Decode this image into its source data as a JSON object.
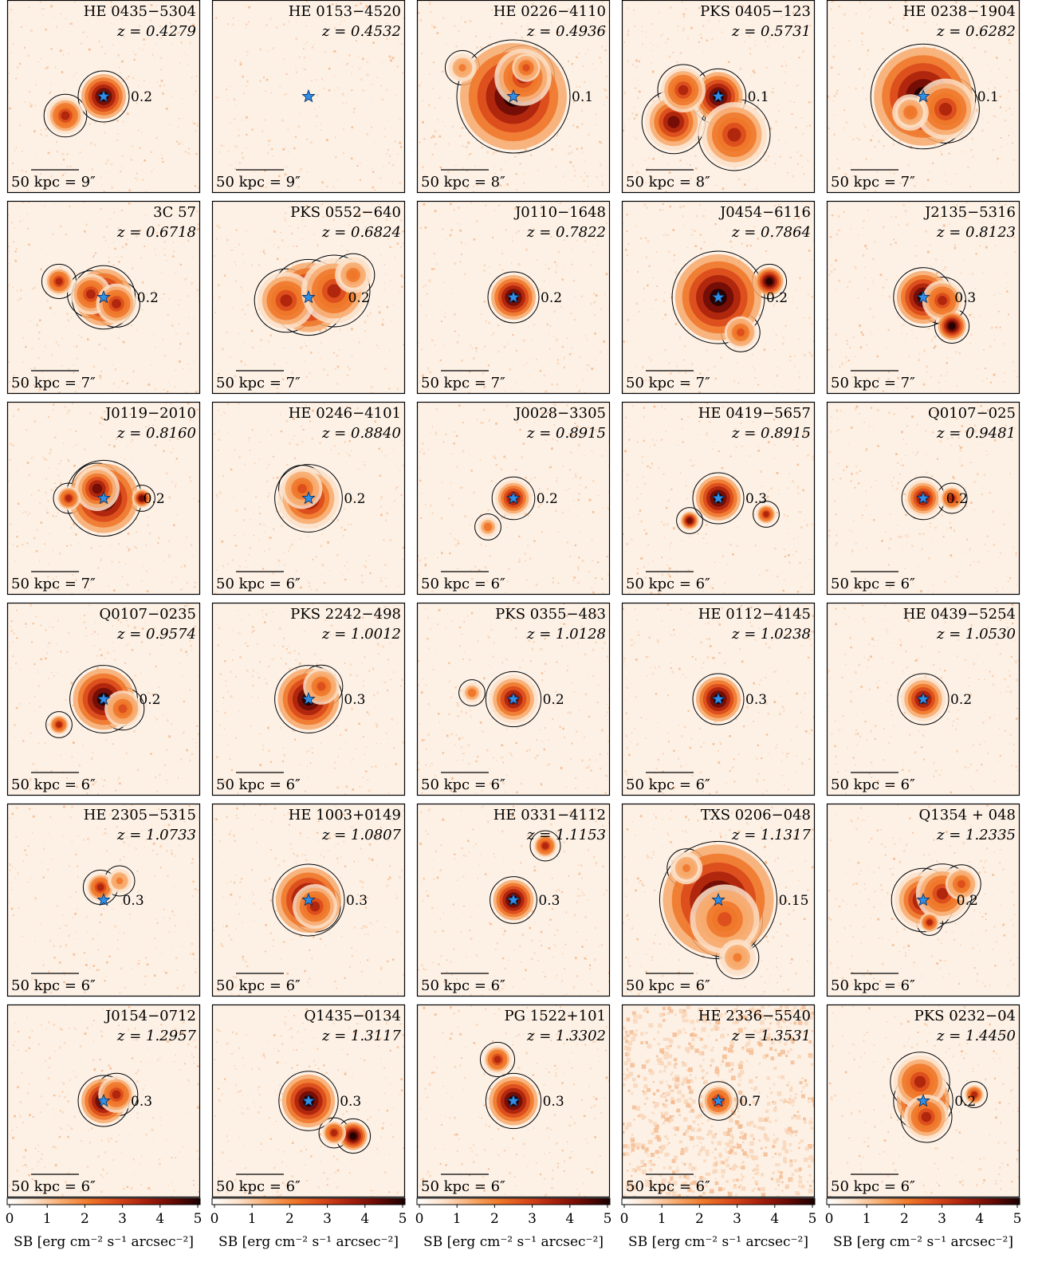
{
  "chart_data": {
    "type": "heatmap",
    "layout": {
      "rows": 6,
      "columns": 5
    },
    "scale_bar": {
      "length_label": "50 kpc"
    },
    "colorbar": {
      "label": "SB [erg cm⁻² s⁻¹ arcsec⁻²]",
      "range": [
        0,
        5
      ],
      "ticks": [
        "0",
        "1",
        "2",
        "3",
        "4",
        "5"
      ],
      "colors": [
        "#ffffff",
        "#fbe0c8",
        "#f7a96b",
        "#ef7628",
        "#d9481a",
        "#a8200c",
        "#6a0a05",
        "#1a0000"
      ]
    },
    "panels": [
      {
        "name": "HE 0435−5304",
        "z": "z = 0.4279",
        "scale": "9″",
        "contour": "0.2",
        "blobs": [
          [
            0,
            0,
            1.0,
            4.5
          ],
          [
            -0.6,
            0.3,
            0.8,
            3
          ]
        ]
      },
      {
        "name": "HE 0153−4520",
        "z": "z = 0.4532",
        "scale": "9″",
        "contour": "",
        "blobs": []
      },
      {
        "name": "HE 0226−4110",
        "z": "z = 0.4936",
        "scale": "8″",
        "contour": "0.1",
        "blobs": [
          [
            0,
            0,
            2.5,
            5
          ],
          [
            0.15,
            -0.3,
            1.3,
            3
          ],
          [
            0.2,
            -0.45,
            0.6,
            2.5
          ],
          [
            -0.8,
            -0.45,
            0.6,
            1.5
          ]
        ]
      },
      {
        "name": "PKS 0405−123",
        "z": "z = 0.5731",
        "scale": "8″",
        "contour": "0.1",
        "blobs": [
          [
            0,
            0,
            1.1,
            5
          ],
          [
            -0.7,
            0.4,
            1.3,
            4
          ],
          [
            -0.55,
            -0.1,
            1.0,
            3
          ],
          [
            0.25,
            0.6,
            1.5,
            3
          ]
        ]
      },
      {
        "name": "HE 0238−1904",
        "z": "z = 0.6282",
        "scale": "7″",
        "contour": "0.1",
        "blobs": [
          [
            0,
            0,
            2.3,
            5
          ],
          [
            0.35,
            0.2,
            1.4,
            3
          ],
          [
            -0.2,
            0.25,
            0.8,
            2
          ]
        ]
      },
      {
        "name": "3C 57",
        "z": "z = 0.6718",
        "scale": "7″",
        "contour": "0.2",
        "blobs": [
          [
            0,
            0,
            1.3,
            5
          ],
          [
            -0.2,
            -0.05,
            0.9,
            3
          ],
          [
            0.2,
            0.1,
            0.9,
            3
          ],
          [
            -0.7,
            -0.25,
            0.6,
            3
          ]
        ]
      },
      {
        "name": "PKS 0552−640",
        "z": "z = 0.6824",
        "scale": "7″",
        "contour": "0.2",
        "blobs": [
          [
            0,
            0,
            1.6,
            5
          ],
          [
            -0.35,
            0.05,
            1.3,
            3
          ],
          [
            0.4,
            -0.1,
            1.5,
            3
          ],
          [
            0.7,
            -0.35,
            0.8,
            2
          ]
        ]
      },
      {
        "name": "J0110−1648",
        "z": "z = 0.7822",
        "scale": "7″",
        "contour": "0.2",
        "blobs": [
          [
            0,
            0,
            1.0,
            5
          ]
        ]
      },
      {
        "name": "J0454−6116",
        "z": "z = 0.7864",
        "scale": "7″",
        "contour": "0.2",
        "blobs": [
          [
            0,
            0,
            2.0,
            5
          ],
          [
            0.8,
            -0.25,
            0.6,
            4.5
          ],
          [
            0.35,
            0.55,
            0.7,
            2.5
          ]
        ]
      },
      {
        "name": "J2135−5316",
        "z": "z = 0.8123",
        "scale": "7″",
        "contour": "0.3",
        "blobs": [
          [
            0,
            0,
            1.2,
            5
          ],
          [
            0.3,
            0.05,
            0.9,
            3
          ],
          [
            0.45,
            0.45,
            0.6,
            4.5
          ]
        ]
      },
      {
        "name": "J0119−2010",
        "z": "z = 0.8160",
        "scale": "7″",
        "contour": "0.2",
        "blobs": [
          [
            0,
            0,
            1.6,
            4.5
          ],
          [
            -0.1,
            -0.15,
            1.0,
            4
          ],
          [
            -0.55,
            0,
            0.5,
            3
          ],
          [
            0.6,
            0,
            0.4,
            4
          ]
        ]
      },
      {
        "name": "HE 0246−4101",
        "z": "z = 0.8840",
        "scale": "6″",
        "contour": "0.2",
        "blobs": [
          [
            0,
            0,
            1.4,
            3.5
          ],
          [
            -0.1,
            -0.15,
            0.9,
            2.5
          ]
        ]
      },
      {
        "name": "J0028−3305",
        "z": "z = 0.8915",
        "scale": "6″",
        "contour": "0.2",
        "blobs": [
          [
            0,
            0,
            0.8,
            4
          ],
          [
            -0.4,
            0.45,
            0.4,
            2
          ]
        ]
      },
      {
        "name": "HE 0419−5657",
        "z": "z = 0.8915",
        "scale": "6″",
        "contour": "0.3",
        "blobs": [
          [
            0,
            0,
            1.0,
            4.5
          ],
          [
            -0.45,
            0.35,
            0.4,
            4
          ],
          [
            0.75,
            0.25,
            0.4,
            3
          ]
        ]
      },
      {
        "name": "Q0107−025",
        "z": "z = 0.9481",
        "scale": "6″",
        "contour": "0.2",
        "blobs": [
          [
            0,
            0,
            0.8,
            4
          ],
          [
            0.45,
            0,
            0.5,
            3
          ]
        ]
      },
      {
        "name": "Q0107−0235",
        "z": "z = 0.9574",
        "scale": "6″",
        "contour": "0.2",
        "blobs": [
          [
            0,
            0,
            1.4,
            5
          ],
          [
            0.3,
            0.15,
            0.8,
            2.5
          ],
          [
            -0.7,
            0.4,
            0.4,
            3
          ]
        ]
      },
      {
        "name": "PKS 2242−498",
        "z": "z = 1.0012",
        "scale": "6″",
        "contour": "0.3",
        "blobs": [
          [
            0,
            0,
            1.4,
            4.5
          ],
          [
            0.2,
            -0.2,
            0.8,
            2.5
          ]
        ]
      },
      {
        "name": "PKS 0355−483",
        "z": "z = 1.0128",
        "scale": "6″",
        "contour": "0.2",
        "blobs": [
          [
            0,
            0,
            1.1,
            4
          ],
          [
            -0.65,
            -0.1,
            0.4,
            2
          ]
        ]
      },
      {
        "name": "HE 0112−4145",
        "z": "z = 1.0238",
        "scale": "6″",
        "contour": "0.3",
        "blobs": [
          [
            0,
            0,
            1.0,
            5
          ]
        ]
      },
      {
        "name": "HE 0439−5254",
        "z": "z = 1.0530",
        "scale": "6″",
        "contour": "0.2",
        "blobs": [
          [
            0,
            0,
            1.0,
            4
          ]
        ]
      },
      {
        "name": "HE 2305−5315",
        "z": "z = 1.0733",
        "scale": "6″",
        "contour": "0.3",
        "blobs": [
          [
            -0.05,
            -0.2,
            0.6,
            3
          ],
          [
            0.25,
            -0.3,
            0.5,
            1.5
          ]
        ]
      },
      {
        "name": "HE 1003+0149",
        "z": "z = 1.0807",
        "scale": "6″",
        "contour": "0.3",
        "blobs": [
          [
            0,
            0,
            1.5,
            5
          ],
          [
            0.1,
            0.1,
            1.0,
            3
          ]
        ]
      },
      {
        "name": "HE 0331−4112",
        "z": "z = 1.1153",
        "scale": "6″",
        "contour": "0.3",
        "blobs": [
          [
            0,
            0,
            0.9,
            5
          ],
          [
            0.5,
            -0.85,
            0.5,
            3
          ]
        ]
      },
      {
        "name": "TXS 0206−048",
        "z": "z = 1.1317",
        "scale": "6″",
        "contour": "0.15",
        "blobs": [
          [
            0,
            0,
            2.6,
            5
          ],
          [
            0.1,
            0.3,
            1.6,
            2.5
          ],
          [
            -0.5,
            -0.5,
            0.7,
            1.5
          ],
          [
            0.3,
            0.9,
            0.8,
            1.5
          ]
        ]
      },
      {
        "name": "Q1354 + 048",
        "z": "z = 1.2335",
        "scale": "6″",
        "contour": "0.2",
        "blobs": [
          [
            0,
            0,
            1.3,
            4
          ],
          [
            0.3,
            -0.1,
            1.2,
            3
          ],
          [
            0.6,
            -0.25,
            0.7,
            2.5
          ],
          [
            0.1,
            0.35,
            0.4,
            3
          ]
        ]
      },
      {
        "name": "J0154−0712",
        "z": "z = 1.2957",
        "scale": "6″",
        "contour": "0.3",
        "blobs": [
          [
            0,
            0,
            1.0,
            5
          ],
          [
            0.2,
            -0.1,
            0.8,
            3
          ]
        ]
      },
      {
        "name": "Q1435−0134",
        "z": "z = 1.3117",
        "scale": "6″",
        "contour": "0.3",
        "blobs": [
          [
            0,
            0,
            1.2,
            5
          ],
          [
            0.7,
            0.55,
            0.6,
            5
          ],
          [
            0.4,
            0.5,
            0.5,
            3
          ]
        ]
      },
      {
        "name": "PG 1522+101",
        "z": "z = 1.3302",
        "scale": "6″",
        "contour": "0.3",
        "blobs": [
          [
            0,
            0,
            1.1,
            4.5
          ],
          [
            -0.25,
            -0.65,
            0.6,
            3
          ]
        ]
      },
      {
        "name": "HE 2336−5540",
        "z": "z = 1.3531",
        "scale": "6″",
        "contour": "0.7",
        "blobs": [
          [
            0,
            0,
            0.7,
            3
          ]
        ]
      },
      {
        "name": "PKS 0232−04",
        "z": "z = 1.4450",
        "scale": "6″",
        "contour": "0.2",
        "blobs": [
          [
            0,
            0,
            1.2,
            5
          ],
          [
            -0.05,
            -0.3,
            1.2,
            3
          ],
          [
            0.05,
            0.25,
            1.0,
            3
          ],
          [
            0.8,
            -0.1,
            0.4,
            3
          ]
        ]
      }
    ]
  }
}
